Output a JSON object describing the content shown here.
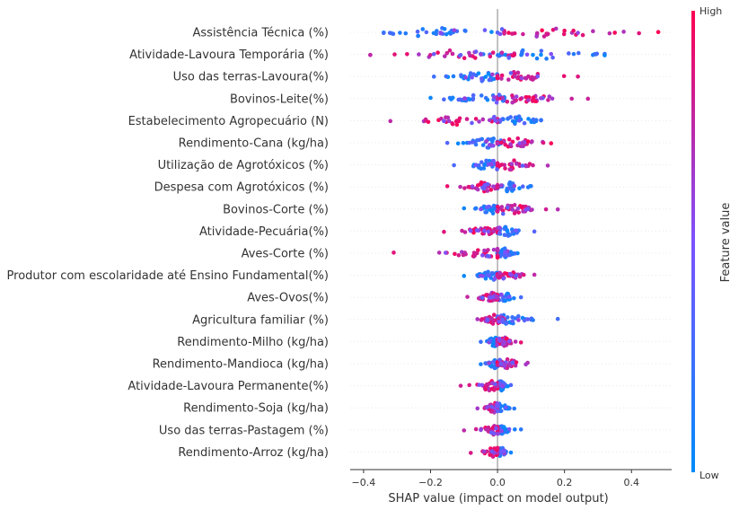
{
  "chart_data": {
    "type": "scatter",
    "subtype": "shap-beeswarm-summary",
    "xlabel": "SHAP value (impact on model output)",
    "xlim": [
      -0.44,
      0.52
    ],
    "xticks": [
      -0.4,
      -0.2,
      0.0,
      0.2,
      0.4
    ],
    "xtick_labels": [
      "−0.4",
      "−0.2",
      "0.0",
      "0.2",
      "0.4"
    ],
    "colorbar": {
      "label": "Feature value",
      "high_label": "High",
      "low_label": "Low",
      "low_color": "#008bfb",
      "high_color": "#ff0051"
    },
    "features": [
      {
        "name": "Assistência Técnica (%)",
        "low_range": [
          -0.34,
          0.0
        ],
        "high_range": [
          0.02,
          0.48
        ],
        "low_center": -0.2,
        "high_center": 0.16
      },
      {
        "name": "Atividade-Lavoura Temporária (%)",
        "low_range": [
          -0.05,
          0.32
        ],
        "high_range": [
          -0.38,
          0.05
        ],
        "low_center": 0.12,
        "high_center": -0.12
      },
      {
        "name": "Uso das terras-Lavoura(%)",
        "low_range": [
          -0.19,
          0.0
        ],
        "high_range": [
          0.0,
          0.24
        ],
        "low_center": -0.05,
        "high_center": 0.07
      },
      {
        "name": "Bovinos-Leite(%)",
        "low_range": [
          -0.2,
          0.02
        ],
        "high_range": [
          0.0,
          0.27
        ],
        "low_center": -0.04,
        "high_center": 0.08
      },
      {
        "name": "Estabelecimento Agropecuário (N)",
        "low_range": [
          -0.02,
          0.13
        ],
        "high_range": [
          -0.32,
          0.0
        ],
        "low_center": 0.06,
        "high_center": -0.1
      },
      {
        "name": "Rendimento-Cana (kg/ha)",
        "low_range": [
          -0.15,
          0.01
        ],
        "high_range": [
          0.0,
          0.16
        ],
        "low_center": -0.03,
        "high_center": 0.05
      },
      {
        "name": "Utilização de Agrotóxicos (%)",
        "low_range": [
          -0.13,
          0.0
        ],
        "high_range": [
          0.0,
          0.15
        ],
        "low_center": -0.03,
        "high_center": 0.04
      },
      {
        "name": "Despesa com Agrotóxicos (%)",
        "low_range": [
          0.0,
          0.1
        ],
        "high_range": [
          -0.15,
          0.0
        ],
        "low_center": 0.03,
        "high_center": -0.04
      },
      {
        "name": "Bovinos-Corte (%)",
        "low_range": [
          -0.1,
          0.0
        ],
        "high_range": [
          0.0,
          0.18
        ],
        "low_center": -0.02,
        "high_center": 0.04
      },
      {
        "name": "Atividade-Pecuária(%)",
        "low_range": [
          0.0,
          0.11
        ],
        "high_range": [
          -0.16,
          0.0
        ],
        "low_center": 0.03,
        "high_center": -0.03
      },
      {
        "name": "Aves-Corte (%)",
        "low_range": [
          0.0,
          0.06
        ],
        "high_range": [
          -0.31,
          0.0
        ],
        "low_center": 0.02,
        "high_center": -0.03
      },
      {
        "name": "Produtor com escolaridade até Ensino Fundamental(%)",
        "low_range": [
          -0.1,
          0.0
        ],
        "high_range": [
          0.0,
          0.11
        ],
        "low_center": -0.02,
        "high_center": 0.03
      },
      {
        "name": "Aves-Ovos(%)",
        "low_range": [
          0.0,
          0.07
        ],
        "high_range": [
          -0.09,
          0.0
        ],
        "low_center": 0.02,
        "high_center": -0.02
      },
      {
        "name": "Agricultura familiar (%)",
        "low_range": [
          0.0,
          0.18
        ],
        "high_range": [
          -0.06,
          0.02
        ],
        "low_center": 0.03,
        "high_center": -0.01
      },
      {
        "name": "Rendimento-Milho (kg/ha)",
        "low_range": [
          -0.05,
          0.0
        ],
        "high_range": [
          0.0,
          0.07
        ],
        "low_center": -0.01,
        "high_center": 0.02
      },
      {
        "name": "Rendimento-Mandioca (kg/ha)",
        "low_range": [
          -0.05,
          0.0
        ],
        "high_range": [
          0.0,
          0.09
        ],
        "low_center": -0.01,
        "high_center": 0.03
      },
      {
        "name": "Atividade-Lavoura Permanente(%)",
        "low_range": [
          0.0,
          0.04
        ],
        "high_range": [
          -0.11,
          0.0
        ],
        "low_center": 0.01,
        "high_center": -0.02
      },
      {
        "name": "Rendimento-Soja (kg/ha)",
        "low_range": [
          0.0,
          0.05
        ],
        "high_range": [
          -0.06,
          0.0
        ],
        "low_center": 0.01,
        "high_center": -0.01
      },
      {
        "name": "Uso das terras-Pastagem (%)",
        "low_range": [
          0.0,
          0.07
        ],
        "high_range": [
          -0.1,
          0.0
        ],
        "low_center": 0.01,
        "high_center": -0.01
      },
      {
        "name": "Rendimento-Arroz (kg/ha)",
        "low_range": [
          0.0,
          0.04
        ],
        "high_range": [
          -0.08,
          0.0
        ],
        "low_center": 0.01,
        "high_center": -0.01
      }
    ]
  }
}
